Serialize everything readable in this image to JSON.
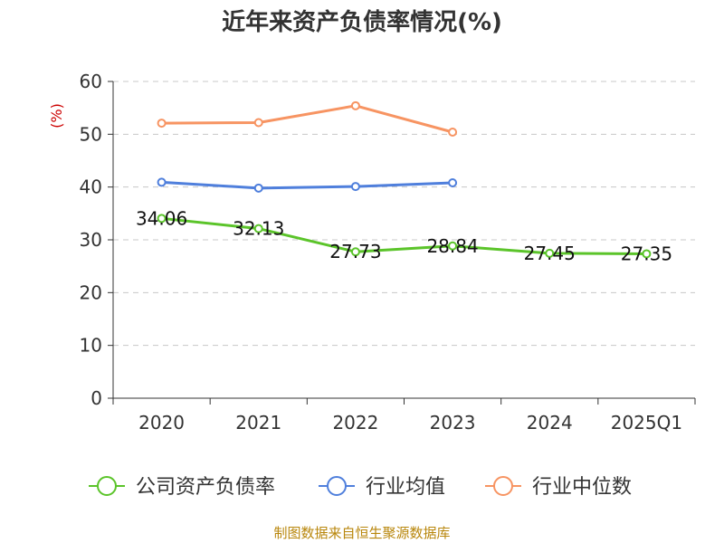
{
  "chart_data": {
    "type": "line",
    "title": "近年来资产负债率情况(%)",
    "ylabel": "(%)",
    "xlabel": "",
    "categories": [
      "2020",
      "2021",
      "2022",
      "2023",
      "2024",
      "2025Q1"
    ],
    "ylim": [
      0,
      60
    ],
    "yticks": [
      0,
      10,
      20,
      30,
      40,
      50,
      60
    ],
    "grid": true,
    "legend_position": "bottom",
    "series": [
      {
        "name": "公司资产负债率",
        "color": "#5bc42a",
        "values": [
          34.06,
          32.13,
          27.73,
          28.84,
          27.45,
          27.35
        ],
        "labels": [
          "34.06",
          "32.13",
          "27.73",
          "28.84",
          "27.45",
          "27.35"
        ]
      },
      {
        "name": "行业均值",
        "color": "#4f7fdc",
        "values": [
          40.9,
          39.8,
          40.1,
          40.8,
          null,
          null
        ]
      },
      {
        "name": "行业中位数",
        "color": "#f79462",
        "values": [
          52.1,
          52.2,
          55.4,
          50.4,
          null,
          null
        ]
      }
    ]
  },
  "footer": {
    "source": "制图数据来自恒生聚源数据库"
  }
}
